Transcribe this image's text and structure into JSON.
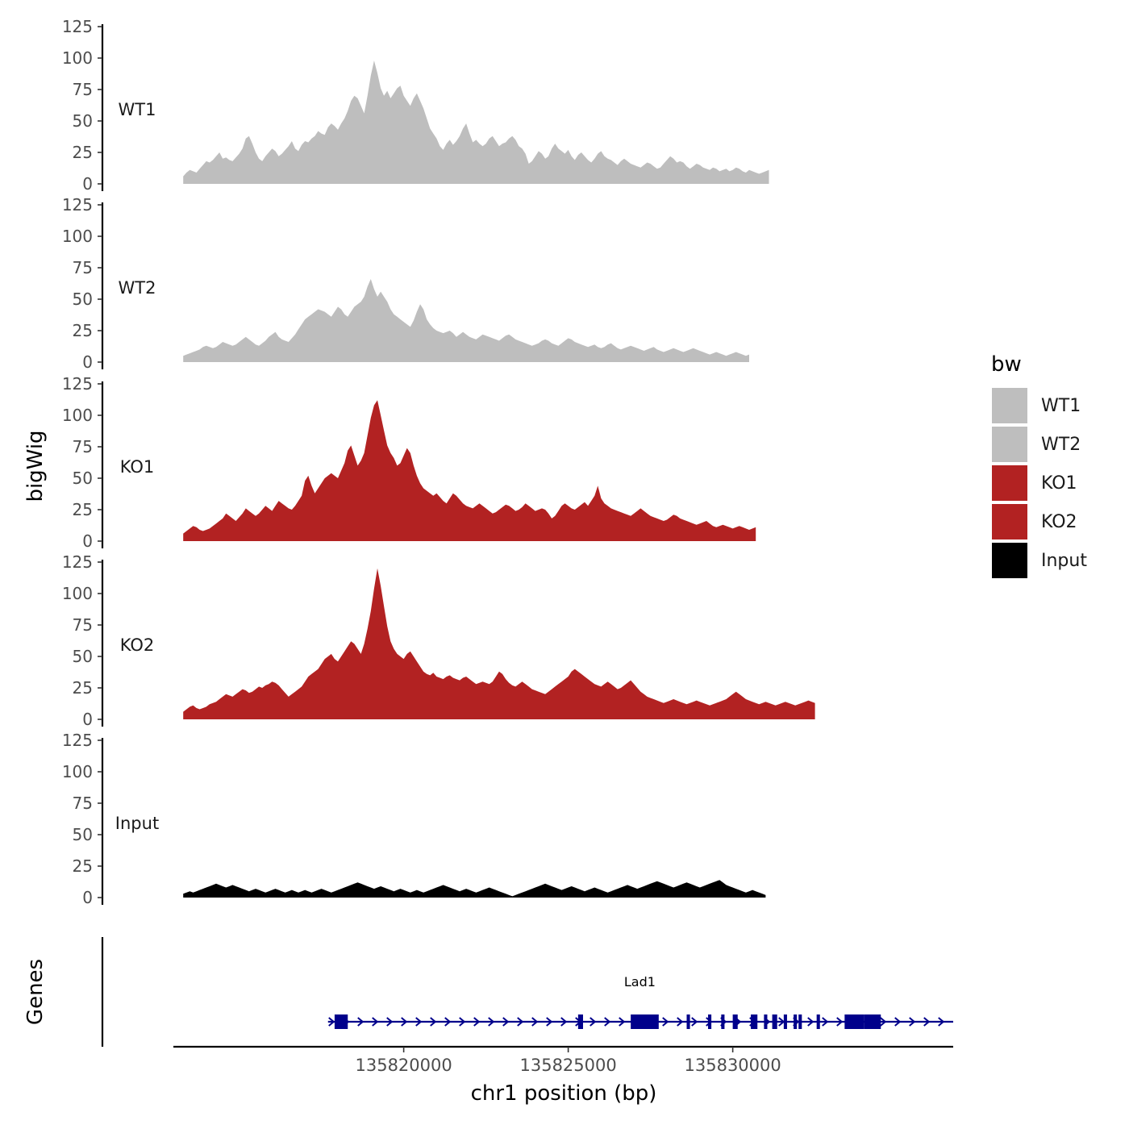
{
  "chart_data": {
    "type": "area",
    "y_axis_title": "bigWig",
    "x_axis_title": "chr1 position (bp)",
    "xlim": [
      135813000,
      135836700
    ],
    "x_ticks": [
      135820000,
      135825000,
      135830000
    ],
    "x_tick_labels": [
      "135820000",
      "135825000",
      "135830000"
    ],
    "ylim": [
      0,
      125
    ],
    "y_ticks": [
      0,
      25,
      50,
      75,
      100,
      125
    ],
    "y_tick_labels": [
      "0",
      "25",
      "50",
      "75",
      "100",
      "125"
    ],
    "x_start": 135813300,
    "x_step": 100,
    "tracks": [
      {
        "name": "WT1",
        "color": "#BEBEBE",
        "values": [
          6,
          9,
          11,
          10,
          9,
          12,
          15,
          18,
          17,
          19,
          22,
          25,
          20,
          21,
          19,
          18,
          21,
          24,
          28,
          36,
          38,
          32,
          25,
          20,
          18,
          22,
          25,
          28,
          26,
          22,
          24,
          27,
          30,
          34,
          28,
          26,
          31,
          34,
          33,
          36,
          38,
          42,
          40,
          39,
          45,
          48,
          46,
          43,
          48,
          52,
          58,
          66,
          70,
          68,
          62,
          56,
          70,
          86,
          98,
          88,
          76,
          70,
          74,
          68,
          72,
          76,
          78,
          70,
          66,
          62,
          68,
          72,
          66,
          60,
          52,
          44,
          40,
          36,
          30,
          27,
          32,
          35,
          31,
          34,
          38,
          44,
          48,
          40,
          33,
          35,
          32,
          30,
          32,
          36,
          38,
          34,
          30,
          32,
          33,
          36,
          38,
          35,
          30,
          28,
          24,
          16,
          18,
          22,
          26,
          24,
          20,
          22,
          28,
          32,
          28,
          26,
          24,
          27,
          22,
          19,
          23,
          25,
          22,
          19,
          17,
          20,
          24,
          26,
          22,
          20,
          19,
          17,
          15,
          18,
          20,
          18,
          16,
          15,
          14,
          13,
          15,
          17,
          16,
          14,
          12,
          13,
          16,
          19,
          22,
          20,
          17,
          18,
          17,
          14,
          12,
          14,
          16,
          15,
          13,
          12,
          11,
          13,
          12,
          10,
          11,
          12,
          10,
          11,
          13,
          12,
          10,
          9,
          11,
          10,
          9,
          8,
          9,
          10,
          11
        ]
      },
      {
        "name": "WT2",
        "color": "#BEBEBE",
        "values": [
          5,
          6,
          7,
          8,
          9,
          10,
          12,
          13,
          12,
          11,
          12,
          14,
          16,
          15,
          14,
          13,
          14,
          16,
          18,
          20,
          18,
          16,
          14,
          13,
          15,
          17,
          20,
          22,
          24,
          20,
          18,
          17,
          16,
          19,
          22,
          26,
          30,
          34,
          36,
          38,
          40,
          42,
          41,
          40,
          38,
          36,
          40,
          44,
          42,
          38,
          36,
          40,
          44,
          46,
          48,
          52,
          60,
          66,
          58,
          52,
          56,
          52,
          48,
          42,
          38,
          36,
          34,
          32,
          30,
          28,
          33,
          40,
          46,
          42,
          34,
          30,
          27,
          25,
          24,
          23,
          24,
          25,
          23,
          20,
          22,
          24,
          22,
          20,
          19,
          18,
          20,
          22,
          21,
          20,
          19,
          18,
          17,
          19,
          21,
          22,
          20,
          18,
          17,
          16,
          15,
          14,
          13,
          14,
          15,
          17,
          18,
          17,
          15,
          14,
          13,
          15,
          17,
          19,
          18,
          16,
          15,
          14,
          13,
          12,
          13,
          14,
          12,
          11,
          12,
          14,
          15,
          13,
          11,
          10,
          11,
          12,
          13,
          12,
          11,
          10,
          9,
          10,
          11,
          12,
          10,
          9,
          8,
          9,
          10,
          11,
          10,
          9,
          8,
          9,
          10,
          11,
          10,
          9,
          8,
          7,
          6,
          7,
          8,
          7,
          6,
          5,
          6,
          7,
          8,
          7,
          6,
          5,
          6
        ]
      },
      {
        "name": "KO1",
        "color": "#B22222",
        "values": [
          6,
          8,
          10,
          12,
          11,
          9,
          8,
          9,
          10,
          12,
          14,
          16,
          18,
          22,
          20,
          18,
          16,
          19,
          22,
          26,
          24,
          22,
          20,
          22,
          25,
          28,
          26,
          24,
          28,
          32,
          30,
          28,
          26,
          25,
          28,
          32,
          36,
          48,
          52,
          44,
          38,
          42,
          46,
          50,
          52,
          54,
          52,
          50,
          56,
          62,
          72,
          76,
          68,
          60,
          64,
          70,
          84,
          98,
          108,
          112,
          100,
          88,
          76,
          70,
          66,
          60,
          62,
          68,
          74,
          70,
          60,
          52,
          46,
          42,
          40,
          38,
          36,
          38,
          35,
          32,
          30,
          34,
          38,
          36,
          33,
          30,
          28,
          27,
          26,
          28,
          30,
          28,
          26,
          24,
          22,
          23,
          25,
          27,
          29,
          28,
          26,
          24,
          25,
          27,
          30,
          28,
          26,
          24,
          25,
          26,
          25,
          22,
          18,
          20,
          24,
          28,
          30,
          28,
          26,
          25,
          27,
          29,
          31,
          28,
          32,
          36,
          44,
          34,
          30,
          28,
          26,
          25,
          24,
          23,
          22,
          21,
          20,
          22,
          24,
          26,
          24,
          22,
          20,
          19,
          18,
          17,
          16,
          17,
          19,
          21,
          20,
          18,
          17,
          16,
          15,
          14,
          13,
          14,
          15,
          16,
          14,
          12,
          11,
          12,
          13,
          12,
          11,
          10,
          11,
          12,
          11,
          10,
          9,
          10,
          11
        ]
      },
      {
        "name": "KO2",
        "color": "#B22222",
        "values": [
          6,
          8,
          10,
          11,
          9,
          8,
          9,
          10,
          12,
          13,
          14,
          16,
          18,
          20,
          19,
          18,
          20,
          22,
          24,
          23,
          21,
          22,
          24,
          26,
          25,
          27,
          28,
          30,
          29,
          27,
          24,
          21,
          18,
          20,
          22,
          24,
          26,
          30,
          34,
          36,
          38,
          40,
          44,
          48,
          50,
          52,
          48,
          46,
          50,
          54,
          58,
          62,
          60,
          56,
          52,
          60,
          72,
          86,
          104,
          120,
          106,
          90,
          74,
          62,
          56,
          52,
          50,
          48,
          52,
          54,
          50,
          46,
          42,
          38,
          36,
          35,
          37,
          34,
          33,
          32,
          34,
          35,
          33,
          32,
          31,
          33,
          34,
          32,
          30,
          28,
          29,
          30,
          29,
          28,
          30,
          34,
          38,
          36,
          32,
          29,
          27,
          26,
          28,
          30,
          28,
          26,
          24,
          23,
          22,
          21,
          20,
          22,
          24,
          26,
          28,
          30,
          32,
          34,
          38,
          40,
          38,
          36,
          34,
          32,
          30,
          28,
          27,
          26,
          28,
          30,
          28,
          26,
          24,
          25,
          27,
          29,
          31,
          28,
          25,
          22,
          20,
          18,
          17,
          16,
          15,
          14,
          13,
          14,
          15,
          16,
          15,
          14,
          13,
          12,
          13,
          14,
          15,
          14,
          13,
          12,
          11,
          12,
          13,
          14,
          15,
          16,
          18,
          20,
          22,
          20,
          18,
          16,
          15,
          14,
          13,
          12,
          13,
          14,
          13,
          12,
          11,
          12,
          13,
          14,
          13,
          12,
          11,
          12,
          13,
          14,
          15,
          14,
          13
        ]
      },
      {
        "name": "Input",
        "color": "#000000",
        "values": [
          3,
          4,
          5,
          4,
          5,
          6,
          7,
          8,
          9,
          10,
          11,
          10,
          9,
          8,
          9,
          10,
          9,
          8,
          7,
          6,
          5,
          6,
          7,
          6,
          5,
          4,
          5,
          6,
          7,
          6,
          5,
          4,
          5,
          6,
          5,
          4,
          5,
          6,
          5,
          4,
          5,
          6,
          7,
          6,
          5,
          4,
          5,
          6,
          7,
          8,
          9,
          10,
          11,
          12,
          11,
          10,
          9,
          8,
          7,
          8,
          9,
          8,
          7,
          6,
          5,
          6,
          7,
          6,
          5,
          4,
          5,
          6,
          5,
          4,
          5,
          6,
          7,
          8,
          9,
          10,
          9,
          8,
          7,
          6,
          5,
          6,
          7,
          6,
          5,
          4,
          5,
          6,
          7,
          8,
          7,
          6,
          5,
          4,
          3,
          2,
          1,
          2,
          3,
          4,
          5,
          6,
          7,
          8,
          9,
          10,
          11,
          10,
          9,
          8,
          7,
          6,
          7,
          8,
          9,
          8,
          7,
          6,
          5,
          6,
          7,
          8,
          7,
          6,
          5,
          4,
          5,
          6,
          7,
          8,
          9,
          10,
          9,
          8,
          7,
          8,
          9,
          10,
          11,
          12,
          13,
          12,
          11,
          10,
          9,
          8,
          9,
          10,
          11,
          12,
          11,
          10,
          9,
          8,
          9,
          10,
          11,
          12,
          13,
          14,
          12,
          10,
          9,
          8,
          7,
          6,
          5,
          4,
          5,
          6,
          5,
          4,
          3,
          2
        ]
      }
    ],
    "legend": {
      "title": "bw",
      "entries": [
        {
          "label": "WT1",
          "color": "#BEBEBE"
        },
        {
          "label": "WT2",
          "color": "#BEBEBE"
        },
        {
          "label": "KO1",
          "color": "#B22222"
        },
        {
          "label": "KO2",
          "color": "#B22222"
        },
        {
          "label": "Input",
          "color": "#000000"
        }
      ]
    },
    "genes": {
      "title": "Genes",
      "color": "#00008B",
      "items": [
        {
          "name": "Lad1",
          "start": 135817700,
          "end": 135836700,
          "strand": "+",
          "exons": [
            [
              135817900,
              135818300
            ],
            [
              135825300,
              135825450
            ],
            [
              135826900,
              135827750
            ],
            [
              135828600,
              135828700
            ],
            [
              135829250,
              135829350
            ],
            [
              135829650,
              135829750
            ],
            [
              135830000,
              135830150
            ],
            [
              135830550,
              135830750
            ],
            [
              135830950,
              135831050
            ],
            [
              135831200,
              135831350
            ],
            [
              135831550,
              135831650
            ],
            [
              135831850,
              135831950
            ],
            [
              135832000,
              135832100
            ],
            [
              135832550,
              135832650
            ],
            [
              135833400,
              135834000
            ],
            [
              135834000,
              135834500
            ]
          ]
        }
      ]
    }
  }
}
